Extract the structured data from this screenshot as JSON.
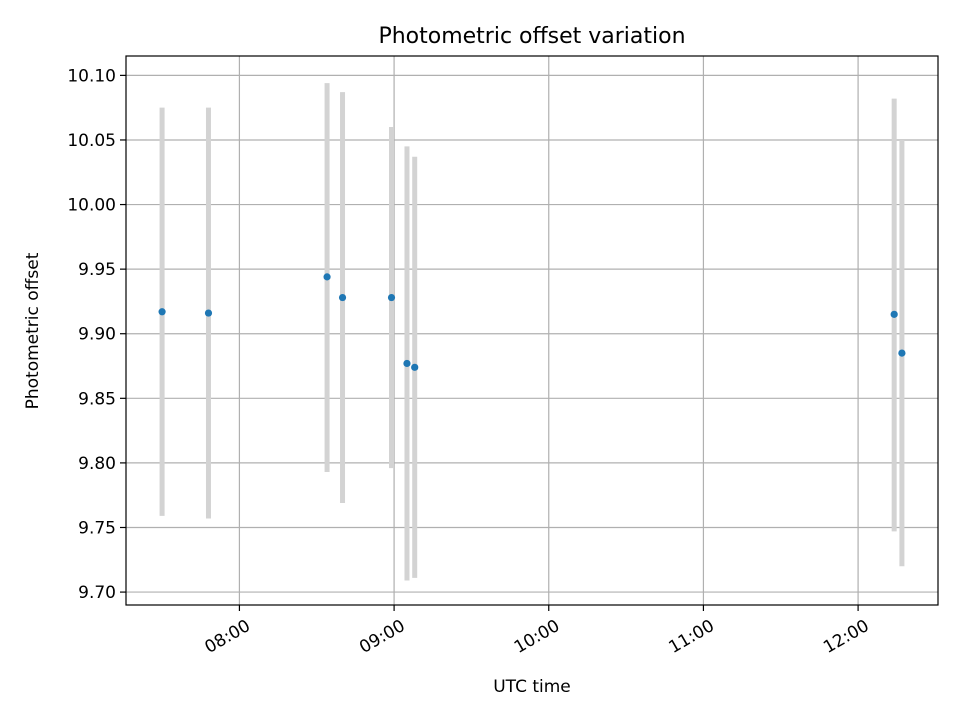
{
  "chart_data": {
    "type": "scatter",
    "title": "Photometric offset variation",
    "xlabel": "UTC time",
    "ylabel": "Photometric offset",
    "grid": true,
    "x_axis_type": "time",
    "xlim": [
      "07:16",
      "12:31"
    ],
    "ylim": [
      9.69,
      10.115
    ],
    "x_ticks": [
      "08:00",
      "09:00",
      "10:00",
      "11:00",
      "12:00"
    ],
    "y_ticks": [
      9.7,
      9.75,
      9.8,
      9.85,
      9.9,
      9.95,
      10.0,
      10.05,
      10.1
    ],
    "colors": {
      "point": "#1f77b4",
      "errorbar": "#d3d3d3",
      "grid": "#b0b0b0"
    },
    "points": [
      {
        "x": "07:30",
        "y": 9.917,
        "y_low": 9.759,
        "y_high": 10.075
      },
      {
        "x": "07:48",
        "y": 9.916,
        "y_low": 9.757,
        "y_high": 10.075
      },
      {
        "x": "08:34",
        "y": 9.944,
        "y_low": 9.793,
        "y_high": 10.094
      },
      {
        "x": "08:40",
        "y": 9.928,
        "y_low": 9.769,
        "y_high": 10.087
      },
      {
        "x": "08:59",
        "y": 9.928,
        "y_low": 9.796,
        "y_high": 10.06
      },
      {
        "x": "09:05",
        "y": 9.877,
        "y_low": 9.709,
        "y_high": 10.045
      },
      {
        "x": "09:08",
        "y": 9.874,
        "y_low": 9.711,
        "y_high": 10.037
      },
      {
        "x": "12:14",
        "y": 9.915,
        "y_low": 9.747,
        "y_high": 10.082
      },
      {
        "x": "12:17",
        "y": 9.885,
        "y_low": 9.72,
        "y_high": 10.05
      }
    ]
  }
}
